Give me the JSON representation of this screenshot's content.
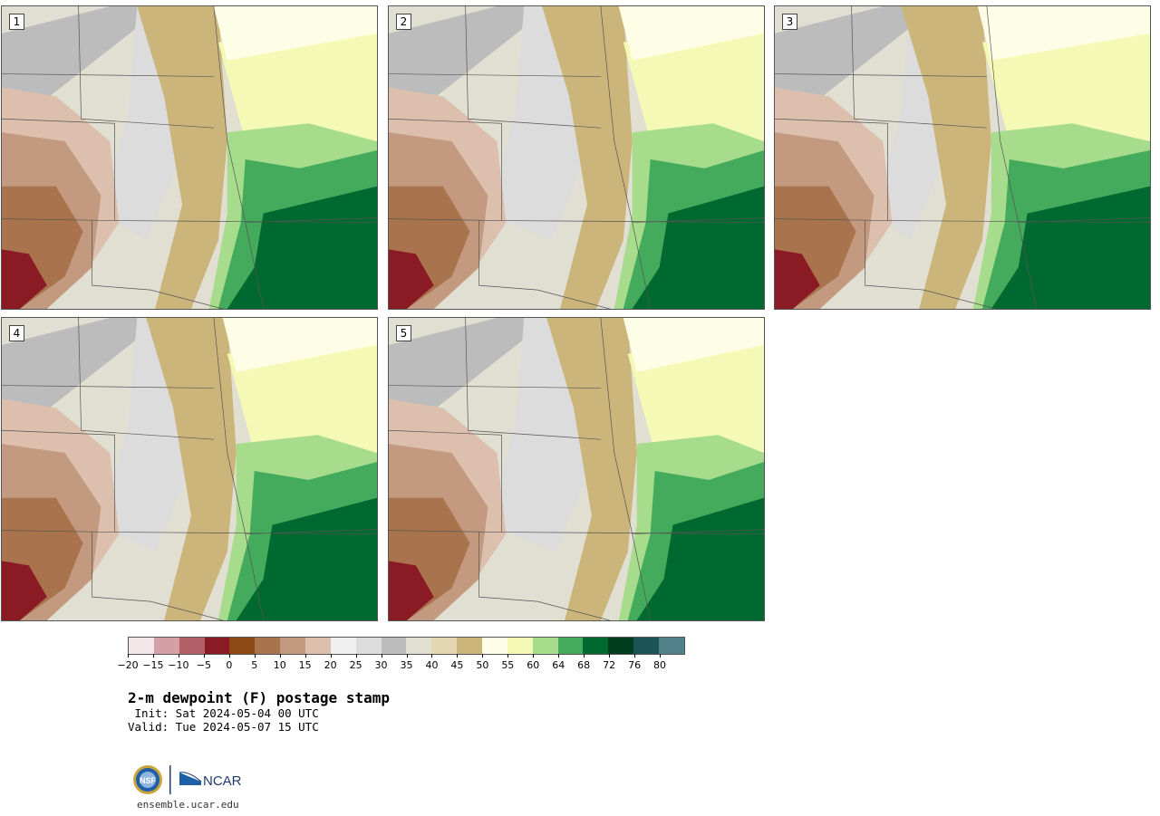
{
  "panels": [
    {
      "label": "1"
    },
    {
      "label": "2"
    },
    {
      "label": "3"
    },
    {
      "label": "4"
    },
    {
      "label": "5"
    }
  ],
  "colorbar": {
    "colors": [
      "#f3e6e8",
      "#d4a0a6",
      "#b35f67",
      "#8a1a24",
      "#8b4a13",
      "#a8734d",
      "#c39a7f",
      "#dcc0ad",
      "#f0f0f0",
      "#dcdcdc",
      "#bcbcbc",
      "#e0dfd2",
      "#e3d6b0",
      "#cbb57b",
      "#fefee6",
      "#f5f9b6",
      "#a6dc8c",
      "#44aa5c",
      "#00692f",
      "#003d1f",
      "#1a5457",
      "#50808a"
    ],
    "ticks": [
      "−20",
      "−15",
      "−10",
      "−5",
      "0",
      "5",
      "10",
      "15",
      "20",
      "25",
      "30",
      "35",
      "40",
      "45",
      "50",
      "55",
      "60",
      "64",
      "68",
      "72",
      "76",
      "80"
    ]
  },
  "title": "2-m dewpoint (F) postage stamp",
  "init": " Init: Sat 2024-05-04 00 UTC",
  "valid": "Valid: Tue 2024-05-07 15 UTC",
  "logo": {
    "nsf": "NSF",
    "ncar": "NCAR"
  },
  "url": "ensemble.ucar.edu"
}
